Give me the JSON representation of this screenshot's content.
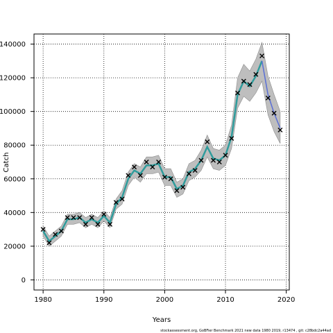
{
  "chart_data": {
    "type": "line",
    "xlabel": "Years",
    "ylabel": "Catch",
    "xlim": [
      1978.5,
      2020.5
    ],
    "ylim": [
      -6000,
      146000
    ],
    "x_ticks": [
      1980,
      1990,
      2000,
      2010,
      2020
    ],
    "y_ticks": [
      0,
      20000,
      40000,
      60000,
      80000,
      100000,
      120000,
      140000
    ],
    "grid": true,
    "footnote": "stockassessment.org,  GoBFier  Benchmark  2021  new  data  1980  2019,  r13474  ,  git:  c28bdc2a44ad",
    "colors": {
      "band": "#bebebe",
      "fit_line": "#2f9c9c",
      "fit_line_end": "#5a6fd6",
      "observed_marker": "#000000",
      "grid": "#000000"
    },
    "years": [
      1980,
      1981,
      1982,
      1983,
      1984,
      1985,
      1986,
      1987,
      1988,
      1989,
      1990,
      1991,
      1992,
      1993,
      1994,
      1995,
      1996,
      1997,
      1998,
      1999,
      2000,
      2001,
      2002,
      2003,
      2004,
      2005,
      2006,
      2007,
      2008,
      2009,
      2010,
      2011,
      2012,
      2013,
      2014,
      2015,
      2016,
      2017,
      2018,
      2019
    ],
    "observed": [
      30000,
      22000,
      27000,
      29000,
      37000,
      37000,
      37000,
      33000,
      37000,
      33000,
      39000,
      33000,
      46000,
      48000,
      62000,
      67000,
      62000,
      70000,
      67000,
      70000,
      61000,
      60000,
      53000,
      55000,
      63000,
      65000,
      71000,
      82000,
      71000,
      70000,
      74000,
      84000,
      111000,
      118000,
      116000,
      122000,
      133000,
      108000,
      99000,
      89000
    ],
    "estimate": [
      29000,
      23000,
      26000,
      29000,
      36000,
      36000,
      37000,
      34000,
      36000,
      34000,
      38000,
      34000,
      45000,
      49000,
      60000,
      65000,
      63000,
      68000,
      68000,
      69000,
      61000,
      61000,
      54000,
      56000,
      64000,
      66000,
      71000,
      79000,
      72000,
      71000,
      74000,
      85000,
      110000,
      118000,
      115000,
      121000,
      130000,
      110000,
      99000,
      90000
    ],
    "lower": [
      26000,
      20000,
      23000,
      26000,
      33000,
      33000,
      34000,
      31000,
      33000,
      31000,
      35000,
      31000,
      42000,
      45000,
      56000,
      61000,
      58000,
      63000,
      63000,
      64000,
      56000,
      56000,
      49000,
      51000,
      59000,
      61000,
      65000,
      73000,
      66000,
      65000,
      68000,
      78000,
      102000,
      109000,
      106000,
      111000,
      118000,
      98000,
      88000,
      81000
    ],
    "upper": [
      32000,
      26000,
      29000,
      32000,
      39000,
      39000,
      40000,
      37000,
      39000,
      37000,
      41000,
      37000,
      48000,
      53000,
      64000,
      69000,
      67000,
      73000,
      73000,
      74000,
      66000,
      66000,
      58000,
      60000,
      69000,
      71000,
      77000,
      86000,
      78000,
      77000,
      80000,
      92000,
      120000,
      128000,
      124000,
      131000,
      141000,
      121000,
      110000,
      100000
    ]
  }
}
